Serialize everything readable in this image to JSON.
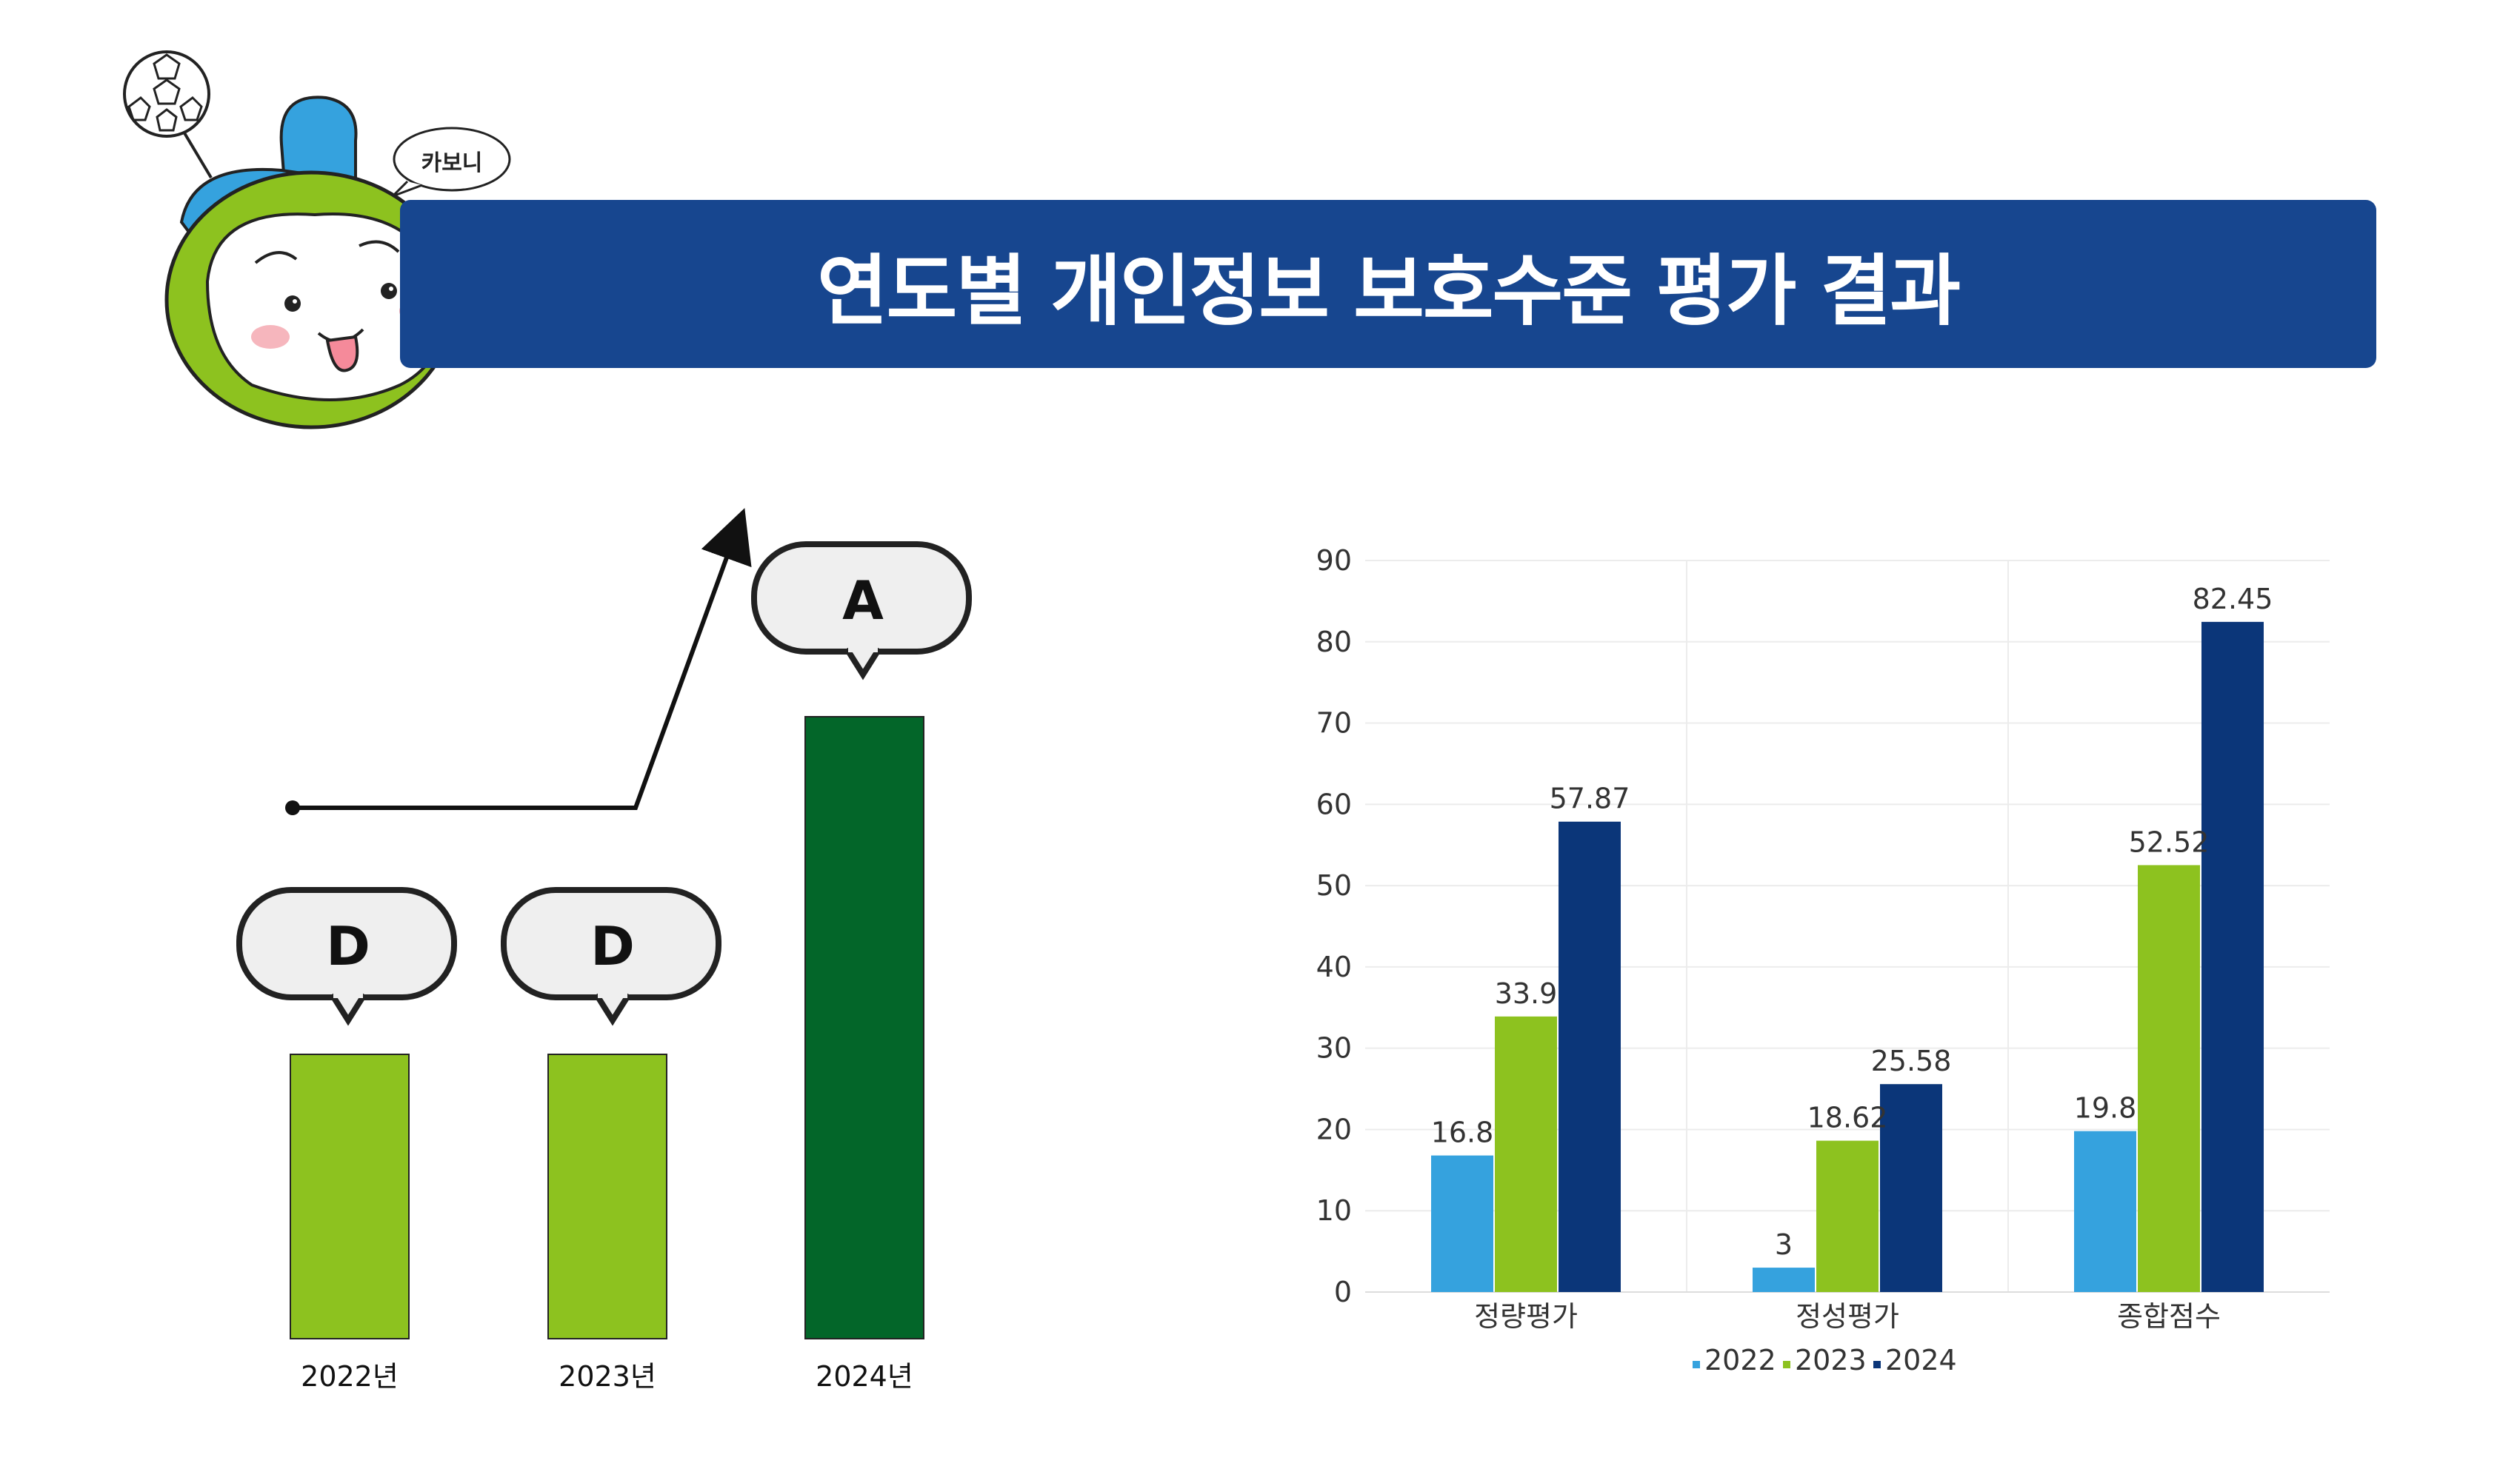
{
  "header": {
    "title": "연도별 개인정보 보호수준 평가 결과",
    "mascot_speech": "카보니"
  },
  "grade_chart": {
    "type": "bar",
    "categories": [
      "2022년",
      "2023년",
      "2024년"
    ],
    "grades": [
      "D",
      "D",
      "A"
    ],
    "colors": [
      "#8dc21f",
      "#8dc21f",
      "#036629"
    ]
  },
  "chart_data": {
    "type": "bar",
    "categories": [
      "정량평가",
      "정성평가",
      "종합점수"
    ],
    "series": [
      {
        "name": "2022",
        "values": [
          16.8,
          3,
          19.8
        ],
        "color": "#35a2de"
      },
      {
        "name": "2023",
        "values": [
          33.9,
          18.62,
          52.52
        ],
        "color": "#8dc21f"
      },
      {
        "name": "2024",
        "values": [
          57.87,
          25.58,
          82.45
        ],
        "color": "#0b3679"
      }
    ],
    "yticks": [
      "0",
      "10",
      "20",
      "30",
      "40",
      "50",
      "60",
      "70",
      "80",
      "90"
    ],
    "ylim": [
      0,
      90
    ],
    "grid": true,
    "legend": "bottom"
  }
}
